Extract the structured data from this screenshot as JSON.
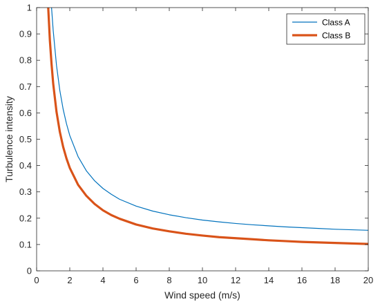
{
  "chart_data": {
    "type": "line",
    "title": "",
    "xlabel": "Wind speed (m/s)",
    "ylabel": "Turbulence intensity",
    "xlim": [
      0,
      20
    ],
    "ylim": [
      0,
      1
    ],
    "xticks": [
      "0",
      "2",
      "4",
      "6",
      "8",
      "10",
      "12",
      "14",
      "16",
      "18",
      "20"
    ],
    "yticks": [
      "0",
      "0.1",
      "0.2",
      "0.3",
      "0.4",
      "0.5",
      "0.6",
      "0.7",
      "0.8",
      "0.9",
      "1"
    ],
    "grid": false,
    "legend_position": "top-right",
    "series": [
      {
        "name": "Class A",
        "color": "#0072BD",
        "x": [
          0.9,
          1.0,
          1.2,
          1.4,
          1.6,
          1.8,
          2,
          2.5,
          3,
          3.5,
          4,
          4.5,
          5,
          6,
          7,
          8,
          9,
          10,
          11,
          12,
          13,
          14,
          15,
          16,
          17,
          18,
          19,
          20
        ],
        "y": [
          1.0,
          0.913,
          0.78,
          0.685,
          0.614,
          0.559,
          0.514,
          0.434,
          0.38,
          0.342,
          0.313,
          0.291,
          0.272,
          0.246,
          0.227,
          0.213,
          0.202,
          0.193,
          0.186,
          0.18,
          0.175,
          0.171,
          0.167,
          0.164,
          0.161,
          0.158,
          0.156,
          0.154
        ]
      },
      {
        "name": "Class B",
        "color": "#D95319",
        "x": [
          0.7,
          0.8,
          0.9,
          1.0,
          1.2,
          1.4,
          1.6,
          1.8,
          2,
          2.5,
          3,
          3.5,
          4,
          4.5,
          5,
          6,
          7,
          8,
          9,
          10,
          11,
          12,
          13,
          14,
          15,
          16,
          17,
          18,
          19,
          20
        ],
        "y": [
          1.0,
          0.875,
          0.786,
          0.711,
          0.604,
          0.528,
          0.471,
          0.427,
          0.391,
          0.327,
          0.285,
          0.254,
          0.23,
          0.212,
          0.198,
          0.176,
          0.161,
          0.15,
          0.141,
          0.134,
          0.128,
          0.124,
          0.12,
          0.116,
          0.113,
          0.11,
          0.108,
          0.106,
          0.104,
          0.102
        ]
      }
    ]
  }
}
